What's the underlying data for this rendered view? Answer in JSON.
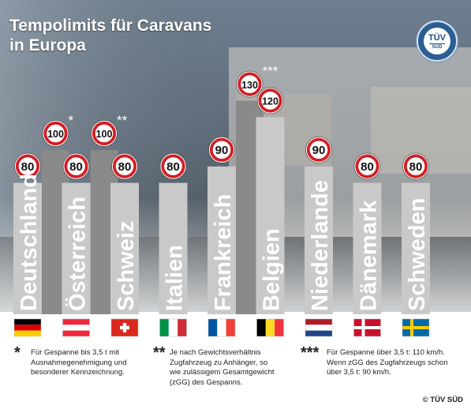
{
  "title_line1": "Tempolimits für Caravans",
  "title_line2": "in Europa",
  "logo": {
    "line1": "TÜV",
    "line2": "SÜD"
  },
  "colors": {
    "sign_border": "#d21f26",
    "car_bar": "#c9c9c9",
    "caravan_bar": "#8a8a8a",
    "country_label": "#ffffff"
  },
  "chart_data": {
    "type": "bar",
    "title": "Tempolimits für Caravans in Europa",
    "unit": "km/h",
    "categories": [
      "Deutschland",
      "Österreich",
      "Schweiz",
      "Italien",
      "Frankreich",
      "Belgien",
      "Niederlande",
      "Dänemark",
      "Schweden"
    ],
    "series": [
      {
        "values": [
          80,
          80,
          80,
          80,
          90,
          120,
          90,
          80,
          80
        ]
      },
      {
        "values": [
          100,
          100,
          null,
          null,
          130,
          null,
          null,
          null,
          null
        ]
      }
    ],
    "footnote_marks": [
      "*",
      "**",
      "",
      "",
      "***",
      "",
      "",
      "",
      ""
    ],
    "flags": [
      "germany-flag",
      "austria-flag",
      "switzerland-flag",
      "italy-flag",
      "france-flag",
      "belgium-flag",
      "netherlands-flag",
      "denmark-flag",
      "sweden-flag"
    ]
  },
  "footnotes": [
    {
      "mark": "*",
      "lines": [
        "Für Gespanne bis 3,5 t mit",
        "Ausnahmegenehmigung und",
        "besonderer Kennzeichnung."
      ]
    },
    {
      "mark": "**",
      "lines": [
        "Je nach Gewichtsverhältnis",
        "Zugfahrzeug zu Anhänger, so",
        "wie zulässigem Gesamtgewicht",
        "(zGG) des Gespanns."
      ]
    },
    {
      "mark": "***",
      "lines": [
        "Für Gespanne über 3,5 t: 110 km/h.",
        "Wenn zGG des Zugfahrzeugs schon",
        "über 3,5 t: 90 km/h."
      ]
    }
  ],
  "copyright": "© TÜV SÜD"
}
